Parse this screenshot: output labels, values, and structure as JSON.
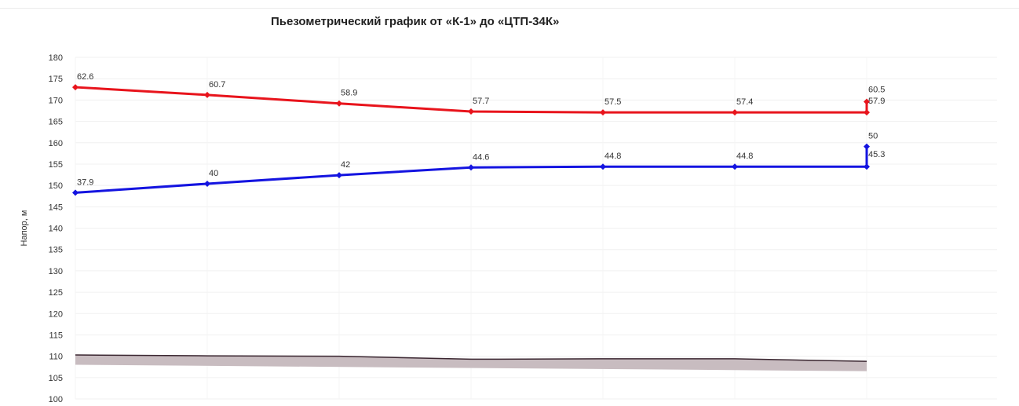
{
  "chart_data": {
    "type": "line",
    "title": "Пьезометрический график от «К-1» до «ЦТП-34К»",
    "ylabel": "Напор, м",
    "xlabel": "",
    "ylim": [
      100,
      180
    ],
    "yticks": [
      100,
      105,
      110,
      115,
      120,
      125,
      130,
      135,
      140,
      145,
      150,
      155,
      160,
      165,
      170,
      175,
      180
    ],
    "grid": true,
    "legend": "none",
    "series": [
      {
        "color": "#e8141c",
        "points": [
          {
            "x": 0,
            "y": 173.0,
            "label": "62.6"
          },
          {
            "x": 1,
            "y": 171.2,
            "label": "60.7"
          },
          {
            "x": 2,
            "y": 169.2,
            "label": "58.9"
          },
          {
            "x": 3,
            "y": 167.3,
            "label": "57.7"
          },
          {
            "x": 4,
            "y": 167.1,
            "label": "57.5"
          },
          {
            "x": 5,
            "y": 167.1,
            "label": "57.4"
          },
          {
            "x": 6,
            "y": 167.1,
            "label": "57.9"
          },
          {
            "x": 6,
            "y": 169.6,
            "label": "60.5"
          }
        ]
      },
      {
        "color": "#1414e0",
        "points": [
          {
            "x": 0,
            "y": 148.3,
            "label": "37.9"
          },
          {
            "x": 1,
            "y": 150.4,
            "label": "40"
          },
          {
            "x": 2,
            "y": 152.4,
            "label": "42"
          },
          {
            "x": 3,
            "y": 154.2,
            "label": "44.6"
          },
          {
            "x": 4,
            "y": 154.4,
            "label": "44.8"
          },
          {
            "x": 5,
            "y": 154.4,
            "label": "44.8"
          },
          {
            "x": 6,
            "y": 154.4,
            "label": "45.3"
          },
          {
            "x": 6,
            "y": 159.1,
            "label": "50"
          }
        ]
      }
    ],
    "ground": {
      "color": "#3a2630",
      "fill": "#c8bcc0",
      "points": [
        {
          "x": 0,
          "y": 110.3
        },
        {
          "x": 1,
          "y": 110.1
        },
        {
          "x": 2,
          "y": 110.0
        },
        {
          "x": 3,
          "y": 109.3
        },
        {
          "x": 4,
          "y": 109.4
        },
        {
          "x": 5,
          "y": 109.4
        },
        {
          "x": 6,
          "y": 108.8
        }
      ],
      "base": [
        {
          "x": 0,
          "y": 108.0
        },
        {
          "x": 6,
          "y": 106.5
        }
      ]
    }
  }
}
